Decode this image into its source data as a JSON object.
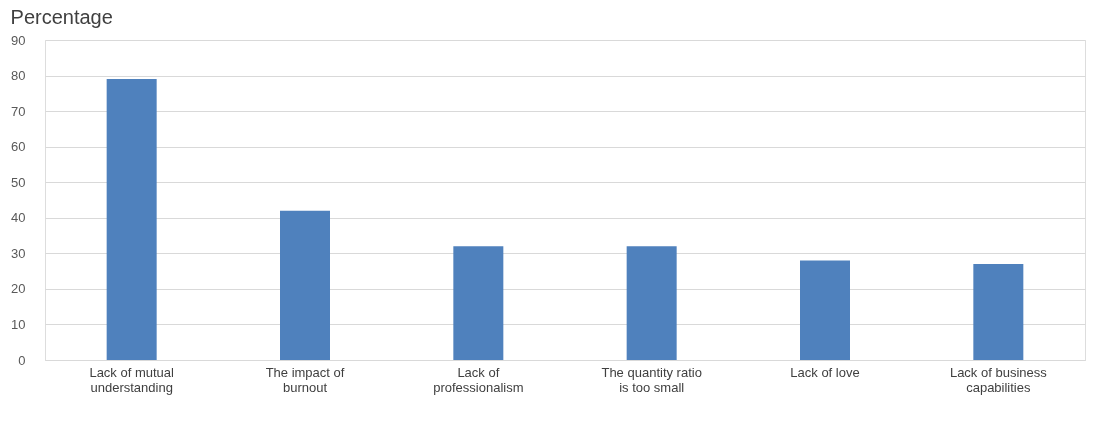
{
  "chart_data": {
    "type": "bar",
    "title": "Percentage",
    "categories": [
      "Lack of mutual\nunderstanding",
      "The impact of\nburnout",
      "Lack of\nprofessionalism",
      "The quantity ratio\nis too small",
      "Lack of love",
      "Lack of business\ncapabilities"
    ],
    "values": [
      79,
      42,
      32,
      32,
      28,
      27
    ],
    "color": "#4f81bd",
    "ylim": [
      0,
      90
    ],
    "yticks": [
      0,
      10,
      20,
      30,
      40,
      50,
      60,
      70,
      80,
      90
    ],
    "grid": "y"
  }
}
